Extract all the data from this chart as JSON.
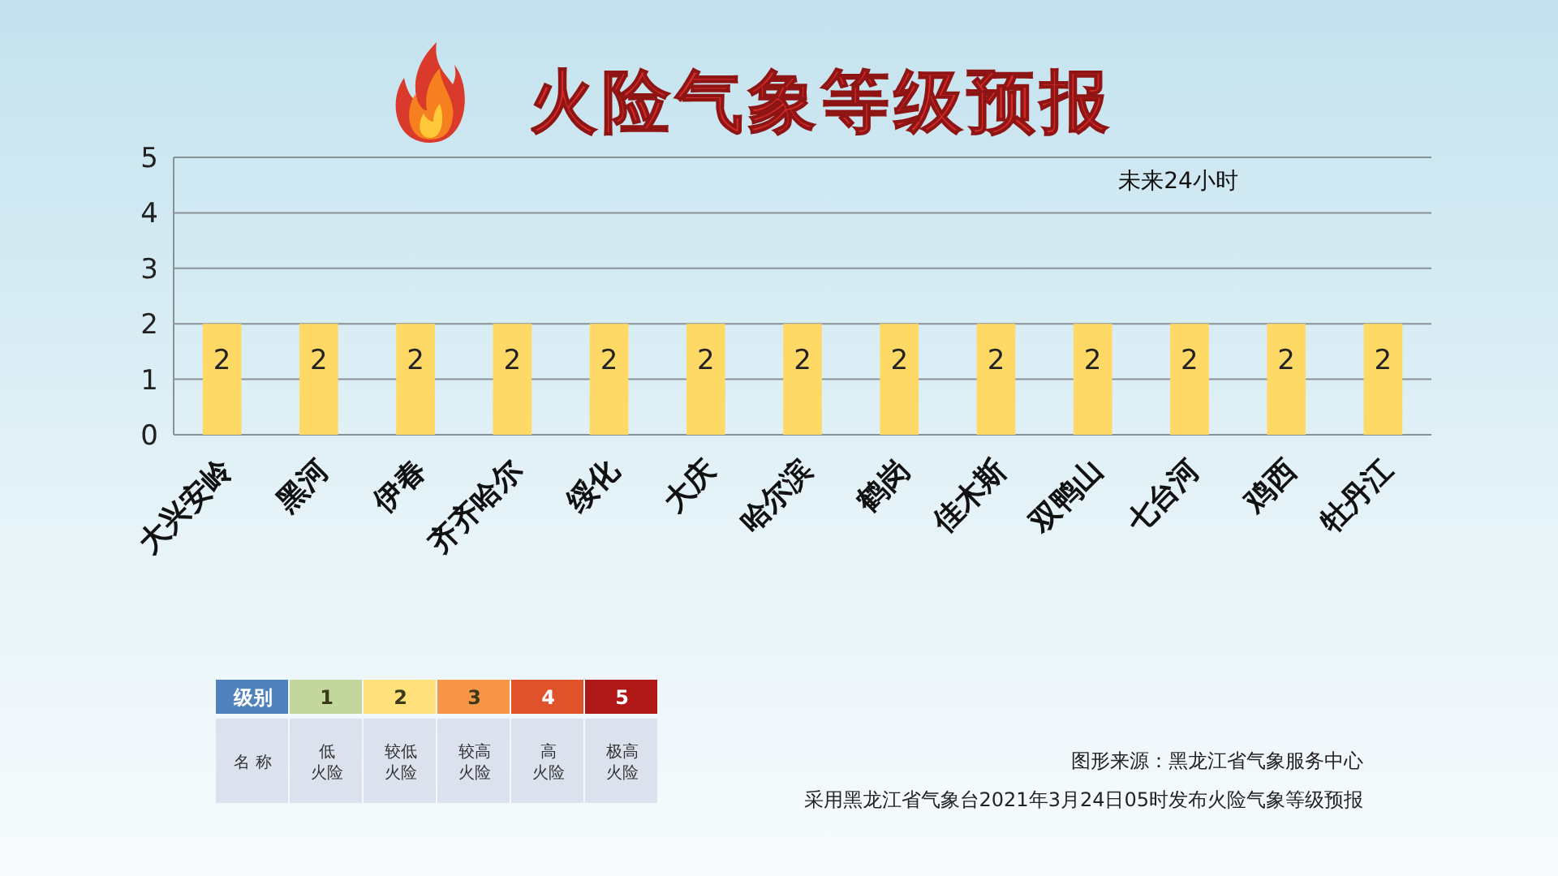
{
  "chart_data": [
    {
      "type": "bar",
      "title": "火险气象等级预报",
      "categories": [
        "大兴安岭",
        "黑河",
        "伊春",
        "齐齐哈尔",
        "绥化",
        "大庆",
        "哈尔滨",
        "鹤岗",
        "佳木斯",
        "双鸭山",
        "七台河",
        "鸡西",
        "牡丹江"
      ],
      "values": [
        2,
        2,
        2,
        2,
        2,
        2,
        2,
        2,
        2,
        2,
        2,
        2,
        2
      ],
      "color": "#ffd966",
      "ylim": [
        0,
        5
      ],
      "yticks": [
        0,
        1,
        2,
        3,
        4,
        5
      ],
      "grid": "y",
      "data_labels": true,
      "annotations": [
        "未来24小时",
        "图形来源：黑龙江省气象服务中心",
        "采用黑龙江省气象台2021年3月24日05时发布火险气象等级预报"
      ]
    },
    {
      "type": "heatmap",
      "xlabel": "名 称",
      "y_categories": [
        "级别"
      ],
      "categories": [
        "低火险",
        "较低火险",
        "较高火险",
        "高火险",
        "极高火险"
      ],
      "cells": [
        [
          1,
          2,
          3,
          4,
          5
        ]
      ],
      "colors": [
        "#c3d69b",
        "#ffe07a",
        "#f79646",
        "#e0522a",
        "#b01818"
      ],
      "data_labels": true
    }
  ]
}
